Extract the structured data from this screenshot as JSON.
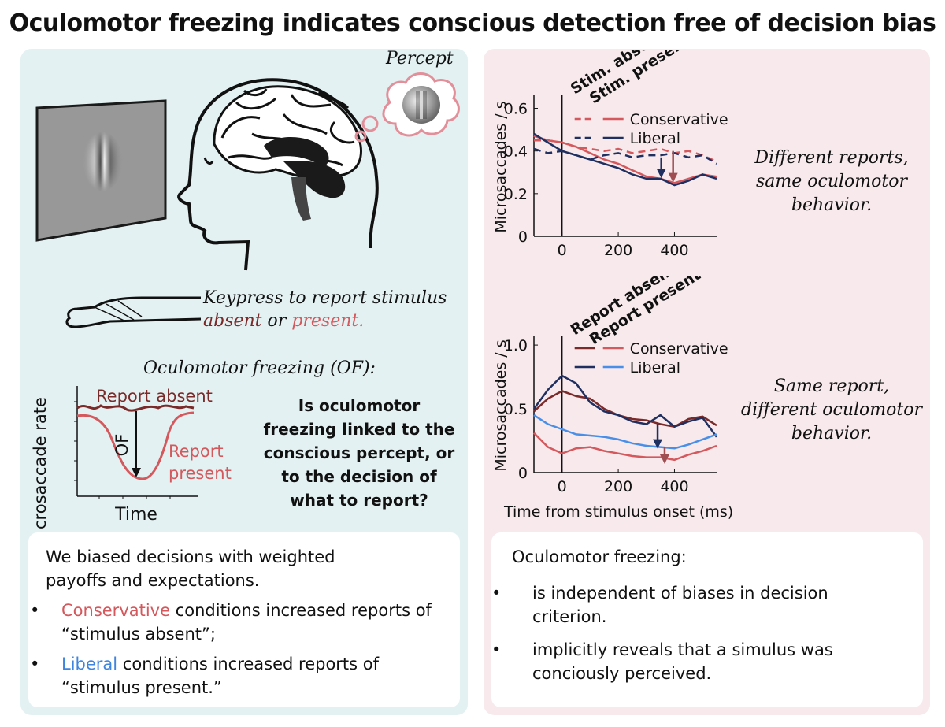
{
  "title": "Oculomotor freezing indicates conscious detection free of decision bias",
  "left": {
    "percept_label": "Percept",
    "keypress_line1": "Keypress to report stimulus",
    "keypress_absent": "absent",
    "keypress_or": " or ",
    "keypress_present": "present.",
    "of_title": "Oculomotor freezing (OF):",
    "of_ylabel": "Microsaccade rate",
    "of_xlabel": "Time",
    "of_report_absent": "Report absent",
    "of_report_present_1": "Report",
    "of_report_present_2": "present",
    "of_arrow_label": "OF",
    "question": [
      "Is oculomotor",
      "freezing linked to the",
      "conscious percept, or",
      "to the decision of",
      "what to report?"
    ],
    "box_intro": "We biased decisions with weighted payoffs and expectations.",
    "bullet1_colored": "Conservative",
    "bullet1_rest": " conditions increased reports of “stimulus absent”;",
    "bullet2_colored": "Liberal",
    "bullet2_rest": " conditions increased reports of “stimulus present.”"
  },
  "right": {
    "chart1_caption": [
      "Different reports,",
      "same oculomotor",
      "behavior."
    ],
    "chart2_caption": [
      "Same report,",
      "different oculomotor",
      "behavior."
    ],
    "box_intro": "Oculomotor freezing:",
    "bullets": [
      "is independent of biases in decision criterion.",
      "implicitly reveals that a simulus was conciously perceived."
    ]
  },
  "colors": {
    "conservative": "#d4585c",
    "conservative_dark": "#7b2a2a",
    "liberal": "#1f3060",
    "liberal_light": "#4a8fe7",
    "panel_left": "#e4f1f2",
    "panel_right": "#f7e9ec"
  },
  "chart_data": [
    {
      "type": "line",
      "ylabel": "Microsaccades / s",
      "xlabel": "",
      "xticks": [
        0,
        200,
        400
      ],
      "yticks": [
        0,
        0.2,
        0.4,
        0.6
      ],
      "xlim": [
        -100,
        550
      ],
      "ylim": [
        0,
        0.65
      ],
      "legend_header": [
        "Stim. absent",
        "Stim. present"
      ],
      "series": [
        {
          "name": "Conservative",
          "condition": "absent",
          "color": "#d4585c",
          "dashed": true,
          "x": [
            -100,
            -50,
            0,
            50,
            100,
            150,
            200,
            250,
            300,
            350,
            400,
            450,
            500,
            550
          ],
          "y": [
            0.45,
            0.45,
            0.44,
            0.42,
            0.41,
            0.4,
            0.41,
            0.39,
            0.4,
            0.41,
            0.39,
            0.4,
            0.38,
            0.35
          ]
        },
        {
          "name": "Conservative",
          "condition": "present",
          "color": "#d4585c",
          "dashed": false,
          "x": [
            -100,
            -50,
            0,
            50,
            100,
            150,
            200,
            250,
            300,
            350,
            400,
            450,
            500,
            550
          ],
          "y": [
            0.47,
            0.45,
            0.44,
            0.42,
            0.39,
            0.36,
            0.34,
            0.31,
            0.28,
            0.27,
            0.25,
            0.27,
            0.29,
            0.28
          ]
        },
        {
          "name": "Liberal",
          "condition": "absent",
          "color": "#1f3060",
          "dashed": true,
          "x": [
            -100,
            -50,
            0,
            50,
            100,
            150,
            200,
            250,
            300,
            350,
            400,
            450,
            500,
            550
          ],
          "y": [
            0.41,
            0.39,
            0.4,
            0.38,
            0.36,
            0.38,
            0.39,
            0.37,
            0.38,
            0.38,
            0.39,
            0.37,
            0.38,
            0.34
          ]
        },
        {
          "name": "Liberal",
          "condition": "present",
          "color": "#1f3060",
          "dashed": false,
          "x": [
            -100,
            -50,
            0,
            50,
            100,
            150,
            200,
            250,
            300,
            350,
            400,
            450,
            500,
            550
          ],
          "y": [
            0.48,
            0.44,
            0.4,
            0.38,
            0.36,
            0.34,
            0.32,
            0.29,
            0.27,
            0.27,
            0.24,
            0.26,
            0.29,
            0.27
          ]
        }
      ]
    },
    {
      "type": "line",
      "ylabel": "Microsaccades / s",
      "xlabel": "Time from stimulus onset (ms)",
      "xticks": [
        0,
        200,
        400
      ],
      "yticks": [
        0,
        0.5,
        1.0
      ],
      "xlim": [
        -100,
        550
      ],
      "ylim": [
        0,
        1.05
      ],
      "legend_header": [
        "Report absent",
        "Report present"
      ],
      "series": [
        {
          "name": "Conservative",
          "condition": "absent",
          "color": "#7b2a2a",
          "x": [
            -100,
            -50,
            0,
            50,
            100,
            150,
            200,
            250,
            300,
            350,
            400,
            450,
            500,
            550
          ],
          "y": [
            0.48,
            0.58,
            0.64,
            0.6,
            0.58,
            0.5,
            0.45,
            0.42,
            0.41,
            0.38,
            0.36,
            0.42,
            0.44,
            0.37
          ]
        },
        {
          "name": "Conservative",
          "condition": "present",
          "color": "#d4585c",
          "x": [
            -100,
            -50,
            0,
            50,
            100,
            150,
            200,
            250,
            300,
            350,
            400,
            450,
            500,
            550
          ],
          "y": [
            0.31,
            0.2,
            0.15,
            0.19,
            0.2,
            0.17,
            0.15,
            0.13,
            0.12,
            0.12,
            0.1,
            0.14,
            0.17,
            0.21
          ]
        },
        {
          "name": "Liberal",
          "condition": "absent",
          "color": "#1f3060",
          "x": [
            -100,
            -50,
            0,
            50,
            100,
            150,
            200,
            250,
            300,
            350,
            400,
            450,
            500,
            550
          ],
          "y": [
            0.5,
            0.65,
            0.76,
            0.7,
            0.55,
            0.48,
            0.45,
            0.4,
            0.38,
            0.45,
            0.36,
            0.4,
            0.43,
            0.28
          ]
        },
        {
          "name": "Liberal",
          "condition": "present",
          "color": "#4a8fe7",
          "x": [
            -100,
            -50,
            0,
            50,
            100,
            150,
            200,
            250,
            300,
            350,
            400,
            450,
            500,
            550
          ],
          "y": [
            0.45,
            0.38,
            0.34,
            0.3,
            0.29,
            0.28,
            0.26,
            0.23,
            0.21,
            0.2,
            0.19,
            0.22,
            0.26,
            0.3
          ]
        }
      ]
    }
  ]
}
